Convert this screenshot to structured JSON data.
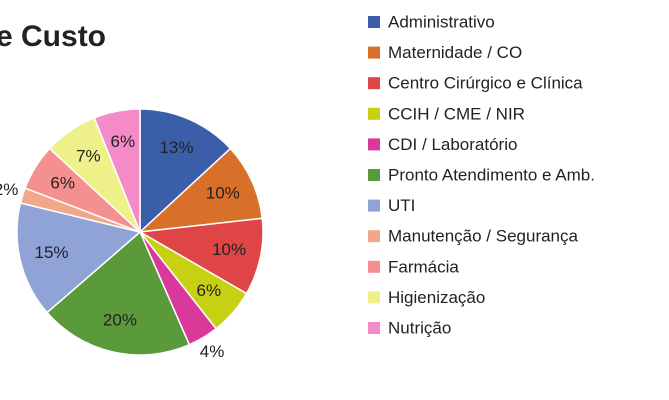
{
  "chart_data": {
    "type": "pie",
    "title": "e Custo",
    "categories": [
      "Administrativo",
      "Maternidade / CO",
      "Centro Cirúrgico e Clínica",
      "CCIH / CME / NIR",
      "CDI / Laboratório",
      "Pronto Atendimento e Amb.",
      "UTI",
      "Manutenção / Segurança",
      "Farmácia",
      "Higienização",
      "Nutrição"
    ],
    "values": [
      13,
      10,
      10,
      6,
      4,
      20,
      15,
      2,
      6,
      7,
      6
    ],
    "value_labels": [
      "13%",
      "10%",
      "10%",
      "6%",
      "4%",
      "20%",
      "15%",
      "2%",
      "6%",
      "7%",
      "6%"
    ],
    "colors": [
      "#3a5ea8",
      "#d9702a",
      "#e04545",
      "#c8d014",
      "#d93a9a",
      "#5a9a3a",
      "#8fa3d6",
      "#f0a88a",
      "#f49090",
      "#eef08a",
      "#f48ac8"
    ]
  }
}
